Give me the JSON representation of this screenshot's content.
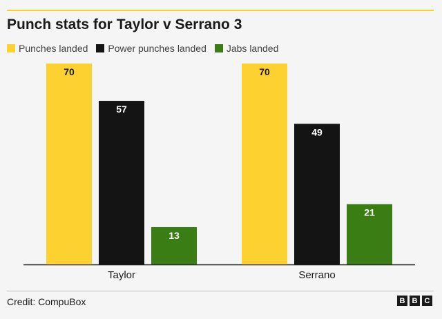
{
  "chart_data": {
    "type": "bar",
    "title": "Punch stats for Taylor v Serrano 3",
    "categories": [
      "Taylor",
      "Serrano"
    ],
    "series": [
      {
        "name": "Punches landed",
        "values": [
          70,
          70
        ],
        "color": "#fdd130"
      },
      {
        "name": "Power punches landed",
        "values": [
          57,
          49
        ],
        "color": "#141414"
      },
      {
        "name": "Jabs landed",
        "values": [
          13,
          21
        ],
        "color": "#3a7d15"
      }
    ],
    "ylim": [
      0,
      70
    ],
    "xlabel": "",
    "ylabel": "",
    "grid": false,
    "legend": "top-left"
  },
  "footer": {
    "credit": "Credit: CompuBox",
    "logo_letters": [
      "B",
      "B",
      "C"
    ]
  }
}
